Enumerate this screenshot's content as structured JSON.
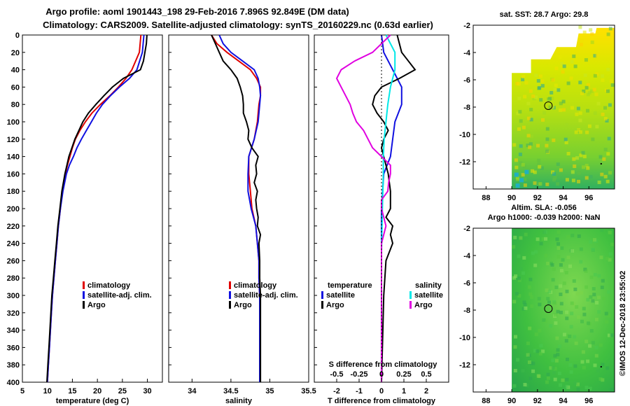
{
  "title_line1": "Argo profile: aoml 1901443_198 29-Feb-2016 7.896S 92.849E (DM data)",
  "title_line2": "Climatology: CARS2009. Satellite-adjusted climatology: synTS_20160229.nc (0.63d earlier)",
  "credit": "©IMOS 12-Dec-2018 23:55:02",
  "colors": {
    "red": "#e00000",
    "blue": "#1010e0",
    "black": "#000000",
    "cyan": "#00e8e8",
    "magenta": "#e000e0"
  },
  "chart_data": [
    {
      "id": "temperature",
      "type": "line",
      "xlabel": "temperature (deg C)",
      "ylabel": "",
      "xlim": [
        5,
        33
      ],
      "ylim": [
        400,
        0
      ],
      "xticks": [
        5,
        10,
        15,
        20,
        25,
        30
      ],
      "legend": [
        "climatology",
        "satellite-adj. clim.",
        "Argo"
      ],
      "series": [
        {
          "name": "climatology",
          "color": "red",
          "depth": [
            0,
            20,
            40,
            50,
            60,
            70,
            80,
            90,
            100,
            110,
            120,
            130,
            140,
            150,
            160,
            180,
            200,
            220,
            240,
            260,
            280,
            300,
            320,
            340,
            360,
            380,
            400
          ],
          "values": [
            28.7,
            28.4,
            26.9,
            25.7,
            24.2,
            22.5,
            20.6,
            18.9,
            17.6,
            16.5,
            15.6,
            15.0,
            14.5,
            14.0,
            13.6,
            13.0,
            12.6,
            12.2,
            11.9,
            11.6,
            11.3,
            11.0,
            10.8,
            10.6,
            10.4,
            10.2,
            10.0
          ]
        },
        {
          "name": "satellite-adj. clim.",
          "color": "blue",
          "depth": [
            0,
            20,
            40,
            50,
            60,
            70,
            80,
            90,
            100,
            110,
            120,
            130,
            140,
            150,
            160,
            180,
            200,
            220,
            240,
            260,
            280,
            300,
            320,
            340,
            360,
            380,
            400
          ],
          "values": [
            29.3,
            29.0,
            27.9,
            26.4,
            24.4,
            22.6,
            21.0,
            19.8,
            18.8,
            17.8,
            16.8,
            15.9,
            15.2,
            14.4,
            13.8,
            13.1,
            12.6,
            12.2,
            11.9,
            11.6,
            11.3,
            11.0,
            10.8,
            10.6,
            10.4,
            10.2,
            10.0
          ]
        },
        {
          "name": "Argo",
          "color": "black",
          "depth": [
            0,
            10,
            20,
            30,
            40,
            50,
            60,
            70,
            80,
            90,
            100,
            110,
            120,
            130,
            140,
            150,
            160,
            180,
            200,
            220,
            240,
            260,
            280,
            300,
            320,
            340,
            360,
            380,
            400
          ],
          "values": [
            29.9,
            29.8,
            29.5,
            29.2,
            28.6,
            25.2,
            23.0,
            21.3,
            19.7,
            18.2,
            17.1,
            16.3,
            15.5,
            14.9,
            14.3,
            13.9,
            13.5,
            12.9,
            12.5,
            12.1,
            11.8,
            11.5,
            11.2,
            10.9,
            10.7,
            10.5,
            10.3,
            10.1,
            9.9
          ]
        }
      ]
    },
    {
      "id": "salinity",
      "type": "line",
      "xlabel": "salinity",
      "ylabel": "",
      "xlim": [
        33.7,
        35.5
      ],
      "ylim": [
        400,
        0
      ],
      "xticks": [
        34,
        34.5,
        35,
        35.5
      ],
      "legend": [
        "climatology",
        "satellite-adj. clim.",
        "Argo"
      ],
      "series": [
        {
          "name": "climatology",
          "color": "red",
          "depth": [
            0,
            10,
            20,
            30,
            40,
            50,
            60,
            70,
            80,
            100,
            120,
            140,
            160,
            180,
            200,
            220,
            240,
            260,
            280,
            300,
            320,
            340,
            360,
            380,
            400
          ],
          "values": [
            34.25,
            34.32,
            34.45,
            34.6,
            34.75,
            34.83,
            34.88,
            34.88,
            34.86,
            34.84,
            34.8,
            34.73,
            34.73,
            34.75,
            34.77,
            34.82,
            34.84,
            34.86,
            34.86,
            34.87,
            34.87,
            34.87,
            34.87,
            34.87,
            34.87
          ]
        },
        {
          "name": "satellite-adj. clim.",
          "color": "blue",
          "depth": [
            0,
            10,
            20,
            30,
            40,
            50,
            60,
            70,
            80,
            100,
            120,
            140,
            160,
            180,
            200,
            220,
            240,
            260,
            280,
            300,
            320,
            340,
            360,
            380,
            400
          ],
          "values": [
            34.35,
            34.4,
            34.5,
            34.65,
            34.8,
            34.85,
            34.87,
            34.88,
            34.87,
            34.85,
            34.8,
            34.73,
            34.72,
            34.72,
            34.76,
            34.82,
            34.84,
            34.86,
            34.86,
            34.87,
            34.87,
            34.87,
            34.87,
            34.87,
            34.87
          ]
        },
        {
          "name": "Argo",
          "color": "black",
          "depth": [
            0,
            10,
            20,
            30,
            40,
            50,
            60,
            70,
            80,
            90,
            100,
            110,
            120,
            130,
            140,
            150,
            160,
            170,
            180,
            190,
            200,
            210,
            220,
            230,
            240,
            260,
            280,
            300,
            320,
            340,
            360,
            380,
            400
          ],
          "values": [
            34.25,
            34.3,
            34.35,
            34.4,
            34.5,
            34.58,
            34.62,
            34.65,
            34.66,
            34.66,
            34.7,
            34.73,
            34.72,
            34.77,
            34.85,
            34.82,
            34.83,
            34.8,
            34.84,
            34.82,
            34.83,
            34.85,
            34.84,
            34.88,
            34.86,
            34.87,
            34.87,
            34.88,
            34.88,
            34.88,
            34.88,
            34.88,
            34.88
          ]
        }
      ]
    },
    {
      "id": "differences",
      "type": "line",
      "xlabel": "T difference from climatology",
      "ylabel": "",
      "xlim": [
        -3,
        3
      ],
      "ylim": [
        400,
        0
      ],
      "xticks": [
        -2,
        -1,
        0,
        1,
        2
      ],
      "second_axis_label": "S difference from climatology",
      "second_axis_ticks": [
        "-0.5",
        "-0.25",
        "0",
        "0.25",
        "0.5"
      ],
      "legend_groups": {
        "temperature": [
          "satellite",
          "Argo"
        ],
        "salinity": [
          "satellite",
          "Argo"
        ]
      },
      "series": [
        {
          "name": "T satellite",
          "color": "blue",
          "depth": [
            0,
            20,
            40,
            60,
            80,
            100,
            120,
            140,
            160,
            200,
            250,
            300,
            400
          ],
          "values": [
            0.0,
            0.1,
            0.5,
            0.9,
            0.9,
            0.6,
            0.5,
            0.4,
            0.1,
            0.0,
            0.0,
            0.0,
            0.0
          ]
        },
        {
          "name": "T Argo",
          "color": "black",
          "depth": [
            0,
            20,
            30,
            40,
            50,
            60,
            70,
            80,
            90,
            100,
            110,
            120,
            130,
            140,
            150,
            160,
            180,
            200,
            210,
            220,
            230,
            240,
            260,
            300,
            400
          ],
          "values": [
            0.7,
            0.9,
            1.2,
            1.5,
            0.8,
            0.0,
            -0.3,
            -0.4,
            -0.2,
            0.1,
            0.3,
            0.1,
            0.0,
            0.1,
            0.2,
            0.3,
            0.4,
            0.4,
            0.2,
            0.5,
            0.4,
            0.5,
            0.2,
            0.1,
            0.0
          ]
        },
        {
          "name": "S satellite",
          "color": "cyan",
          "depth": [
            0,
            20,
            40,
            60,
            80,
            100,
            120,
            140,
            160,
            200,
            250,
            300,
            400
          ],
          "values": [
            0.05,
            0.15,
            0.15,
            0.1,
            0.07,
            0.05,
            0.03,
            0.02,
            0.02,
            0.01,
            0.0,
            0.0,
            0.0
          ]
        },
        {
          "name": "S Argo",
          "color": "magenta",
          "depth": [
            0,
            20,
            30,
            40,
            50,
            60,
            70,
            80,
            90,
            100,
            110,
            120,
            130,
            140,
            150,
            160,
            170,
            180,
            190,
            200,
            220,
            240,
            260,
            300,
            400
          ],
          "values": [
            0.1,
            -0.1,
            -0.3,
            -0.45,
            -0.5,
            -0.45,
            -0.4,
            -0.35,
            -0.32,
            -0.28,
            -0.2,
            -0.15,
            -0.1,
            0.0,
            0.1,
            0.1,
            0.08,
            0.07,
            0.0,
            0.0,
            0.05,
            0.0,
            0.0,
            0.0,
            0.0
          ]
        }
      ]
    },
    {
      "id": "sst-map",
      "type": "heatmap",
      "title": "sat. SST: 28.7 Argo: 29.8",
      "xlim": [
        87,
        98
      ],
      "ylim": [
        -14,
        -2
      ],
      "xticks": [
        88,
        90,
        92,
        94,
        96
      ],
      "yticks": [
        -2,
        -4,
        -6,
        -8,
        -10,
        -12
      ],
      "argo_position": [
        92.849,
        -7.896
      ]
    },
    {
      "id": "sla-map",
      "type": "heatmap",
      "title_line1": "Altim. SLA: -0.056",
      "title_line2": "Argo h1000: -0.039 h2000: NaN",
      "xlim": [
        87,
        98
      ],
      "ylim": [
        -14,
        -2
      ],
      "xticks": [
        88,
        90,
        92,
        94,
        96
      ],
      "yticks": [
        -2,
        -4,
        -6,
        -8,
        -10,
        -12
      ],
      "argo_position": [
        92.849,
        -7.896
      ]
    }
  ]
}
